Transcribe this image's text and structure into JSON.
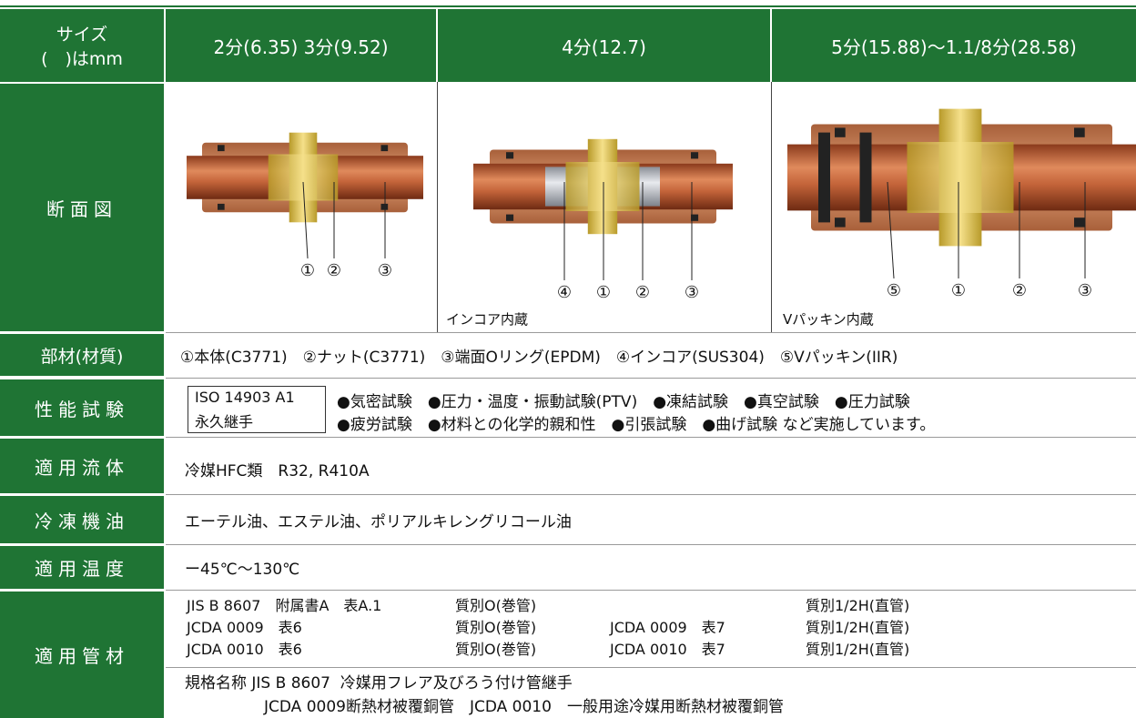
{
  "header": {
    "size_line1": "サイズ",
    "size_line2": "(　)はmm",
    "columns": [
      "2分(6.35)  3分(9.52)",
      "4分(12.7)",
      "5分(15.88)～1.1/8分(28.58)"
    ]
  },
  "section": {
    "label": "断面図",
    "diagrams": [
      {
        "parts": [
          "①",
          "②",
          "③"
        ]
      },
      {
        "parts": [
          "④",
          "①",
          "②",
          "③"
        ],
        "note": "インコア内蔵"
      },
      {
        "parts": [
          "⑤",
          "①",
          "②",
          "③"
        ],
        "note": "Vパッキン内蔵"
      }
    ]
  },
  "materials": {
    "label": "部材(材質)",
    "text": "①本体(C3771)　②ナット(C3771)　③端面Oリング(EPDM)　④インコア(SUS304)　⑤Vパッキン(IIR)"
  },
  "performance": {
    "label": "性能試験",
    "badge": [
      "ISO 14903 A1",
      "永久継手"
    ],
    "lines": [
      "●気密試験　●圧力・温度・振動試験(PTV)　●凍結試験　●真空試験　●圧力試験",
      "●疲労試験　●材料との化学的親和性　●引張試験　●曲げ試験 など実施しています。"
    ]
  },
  "fluid": {
    "label": "適用流体",
    "text": "冷媒HFC類　R32, R410A"
  },
  "oil": {
    "label": "冷凍機油",
    "text": "エーテル油、エステル油、ポリアルキレングリコール油"
  },
  "temperature": {
    "label": "適用温度",
    "text": "ー45℃～130℃"
  },
  "pipe": {
    "label": "適用管材",
    "rows": [
      {
        "standard": "JIS B 8607　附属書A　表A.1",
        "temper": "質別O(巻管)",
        "temper2": "質別1/2H(直管)"
      },
      {
        "standard": "JCDA 0009　表6",
        "temper": "質別O(巻管)",
        "standard2": "JCDA 0009　表7",
        "temper2": "質別1/2H(直管)"
      },
      {
        "standard": "JCDA 0010　表6",
        "temper": "質別O(巻管)",
        "standard2": "JCDA 0010　表7",
        "temper2": "質別1/2H(直管)"
      }
    ],
    "notes": [
      "規格名称 JIS B 8607  冷媒用フレア及びろう付け管継手",
      "JCDA 0009断熱材被覆銅管　JCDA 0010　一般用途冷媒用断熱材被覆銅管"
    ]
  }
}
